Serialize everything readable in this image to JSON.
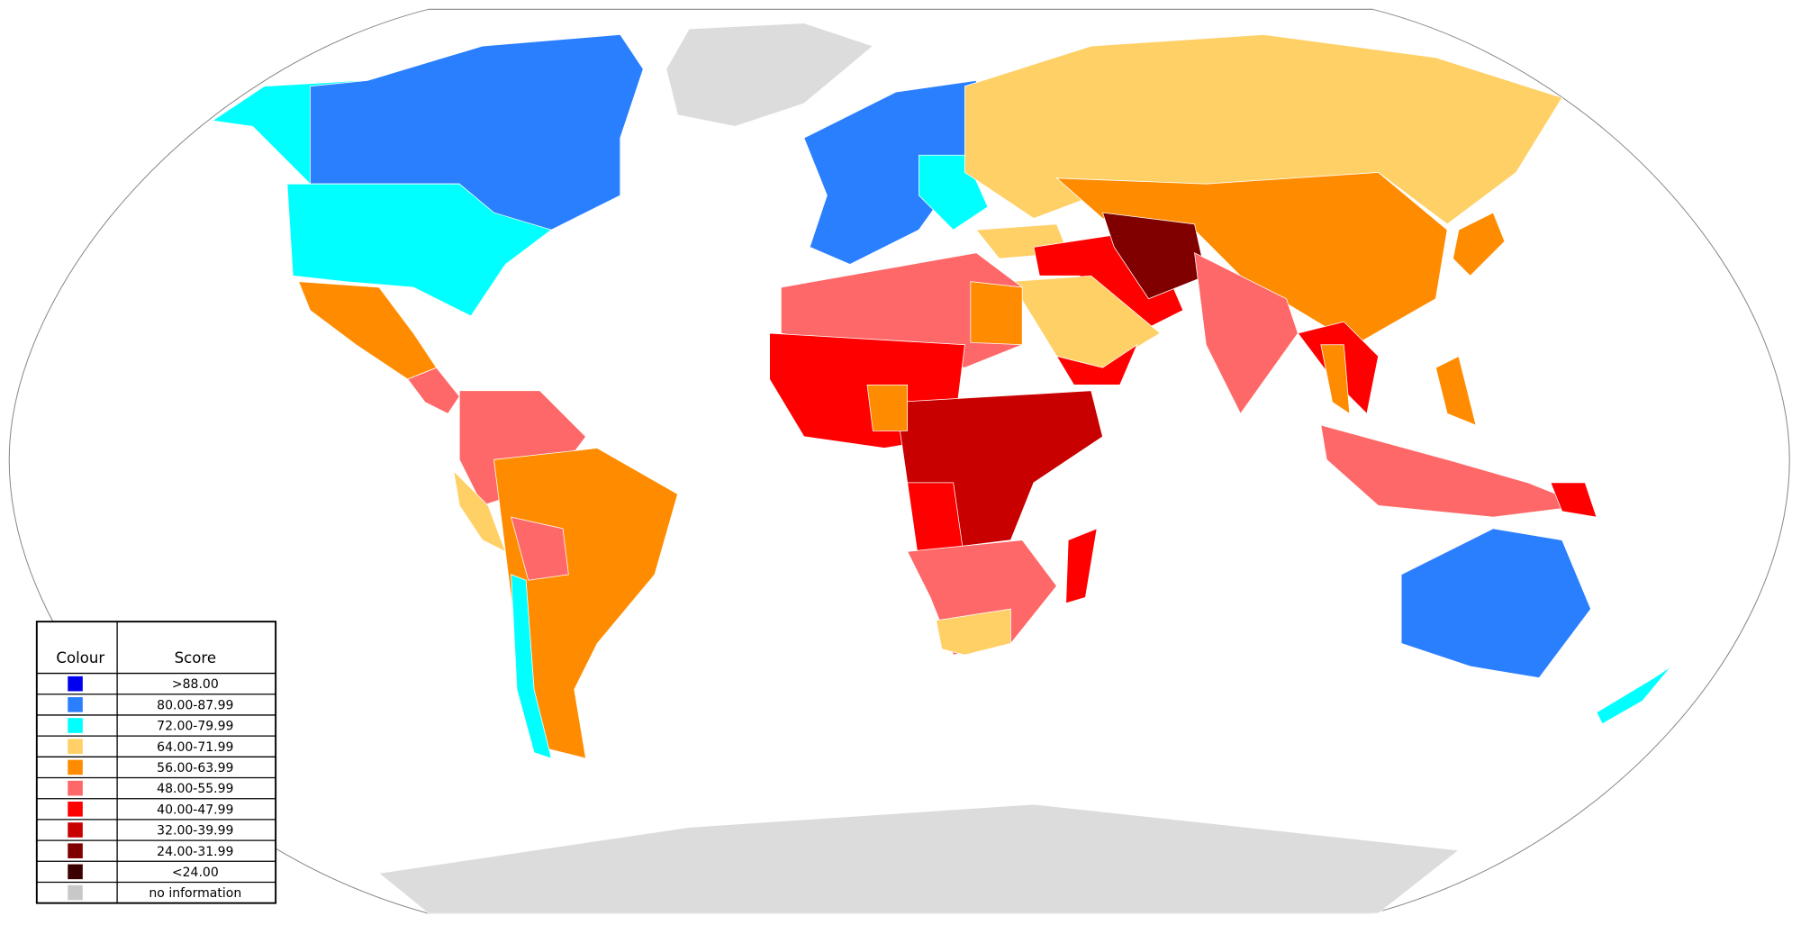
{
  "legend": {
    "headers": [
      "Colour",
      "Score"
    ],
    "rows": [
      {
        "color": "#0000ee",
        "label": ">88.00"
      },
      {
        "color": "#2a7fff",
        "label": "80.00-87.99"
      },
      {
        "color": "#00ffff",
        "label": "72.00-79.99"
      },
      {
        "color": "#ffd066",
        "label": "64.00-71.99"
      },
      {
        "color": "#ff8c00",
        "label": "56.00-63.99"
      },
      {
        "color": "#ff6868",
        "label": "48.00-55.99"
      },
      {
        "color": "#ff0000",
        "label": "40.00-47.99"
      },
      {
        "color": "#c80000",
        "label": "32.00-39.99"
      },
      {
        "color": "#800000",
        "label": "24.00-31.99"
      },
      {
        "color": "#3c0000",
        "label": "<24.00"
      },
      {
        "color": "#c8c8c8",
        "label": "no information"
      }
    ]
  }
}
